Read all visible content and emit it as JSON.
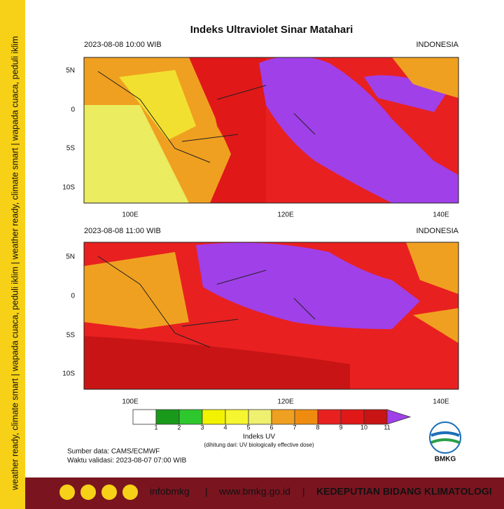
{
  "header": {
    "title": "Indeks Ultraviolet Sinar Matahari"
  },
  "sidebar": {
    "text": "weather ready, climate smart  |  wapada cuaca, peduli iklim  |  weather ready, climate smart  |  wapada cuaca, peduli iklim"
  },
  "maps": [
    {
      "timestamp": "2023-08-08  10:00 WIB",
      "region": "INDONESIA",
      "lat_labels": [
        "5N",
        "0",
        "5S",
        "10S"
      ],
      "lon_labels": [
        "100E",
        "120E",
        "140E"
      ]
    },
    {
      "timestamp": "2023-08-08  11:00 WIB",
      "region": "INDONESIA",
      "lat_labels": [
        "5N",
        "0",
        "5S",
        "10S"
      ],
      "lon_labels": [
        "100E",
        "120E",
        "140E"
      ]
    }
  ],
  "legend": {
    "labels": [
      "1",
      "2",
      "3",
      "4",
      "5",
      "6",
      "7",
      "8",
      "9",
      "10",
      "11"
    ],
    "colors": [
      "#ffffff",
      "#1a9a1a",
      "#2ec82e",
      "#f2f200",
      "#f5f530",
      "#f0f070",
      "#f0a020",
      "#ef8c10",
      "#e82020",
      "#e01818",
      "#c81414",
      "#a040e8"
    ],
    "title": "Indeks UV",
    "note": "(dihitung dari: UV biologically effective dose)"
  },
  "source": {
    "data": "Sumber data: CAMS/ECMWF",
    "validity": "Waktu validasi: 2023-08-07 07:00 WIB"
  },
  "logo": {
    "text": "BMKG"
  },
  "footer": {
    "handle": "infobmkg",
    "website": "www.bmkg.go.id",
    "department": "KEDEPUTIAN BIDANG KLIMATOLOGI"
  }
}
